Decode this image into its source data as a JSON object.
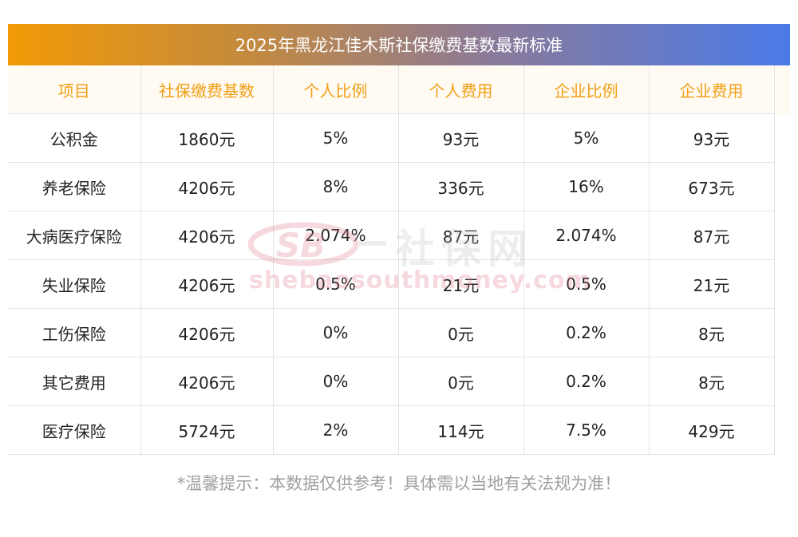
{
  "title": "2025年黑龙江佳木斯社保缴费基数最新标准",
  "headers": [
    "项目",
    "社保缴费基数",
    "个人比例",
    "个人费用",
    "企业比例",
    "企业费用"
  ],
  "rows": [
    [
      "公积金",
      "1860元",
      "5%",
      "93元",
      "5%",
      "93元"
    ],
    [
      "养老保险",
      "4206元",
      "8%",
      "336元",
      "16%",
      "673元"
    ],
    [
      "大病医疗保险",
      "4206元",
      "2.074%",
      "87元",
      "2.074%",
      "87元"
    ],
    [
      "失业保险",
      "4206元",
      "0.5%",
      "21元",
      "0.5%",
      "21元"
    ],
    [
      "工伤保险",
      "4206元",
      "0%",
      "0元",
      "0.2%",
      "8元"
    ],
    [
      "其它费用",
      "4206元",
      "0%",
      "0元",
      "0.2%",
      "8元"
    ],
    [
      "医疗保险",
      "5724元",
      "2%",
      "114元",
      "7.5%",
      "429元"
    ]
  ],
  "watermark": {
    "logo_text": "SB",
    "brand": "社保网",
    "url": "shebaosouthmoney.com"
  },
  "note": "*温馨提示：本数据仅供参考！具体需以当地有关法规为准！",
  "colors": {
    "header_text": "#f0a018",
    "banner_start": "#f29a06",
    "banner_end": "#4a7ae8"
  }
}
